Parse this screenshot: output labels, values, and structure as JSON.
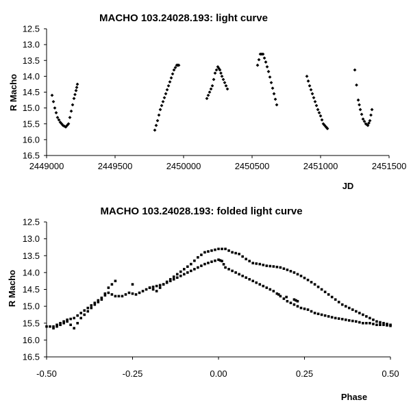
{
  "chart_data": [
    {
      "type": "scatter",
      "title": "MACHO 103.24028.193: light curve",
      "xlabel": "JD",
      "ylabel": "R Macho",
      "xlim": [
        2449000,
        2451500
      ],
      "ylim": [
        12.5,
        16.5
      ],
      "y_inverted": true,
      "grid": false,
      "x_ticks": [
        "2449000",
        "2449500",
        "2450000",
        "2450500",
        "2451000",
        "2451500"
      ],
      "y_ticks": [
        "12.5",
        "13.0",
        "13.5",
        "14.0",
        "14.5",
        "15.0",
        "15.5",
        "16.0",
        "16.5"
      ],
      "marker_color": "#000000",
      "series": [
        {
          "segments": [
            {
              "x": [
                2449040,
                2449060,
                2449080,
                2449100,
                2449120,
                2449140,
                2449160,
                2449180,
                2449200,
                2449215,
                2449225
              ],
              "y": [
                14.6,
                15.0,
                15.3,
                15.45,
                15.55,
                15.6,
                15.5,
                15.1,
                14.7,
                14.45,
                14.25
              ]
            },
            {
              "x": [
                2449790,
                2449810,
                2449830,
                2449850,
                2449870,
                2449890,
                2449910,
                2449930,
                2449950,
                2449965
              ],
              "y": [
                15.7,
                15.4,
                15.05,
                14.8,
                14.55,
                14.3,
                14.05,
                13.8,
                13.65,
                13.65
              ]
            },
            {
              "x": [
                2450170,
                2450190,
                2450210,
                2450230,
                2450250,
                2450265,
                2450280,
                2450300,
                2450320
              ],
              "y": [
                14.7,
                14.5,
                14.3,
                13.9,
                13.7,
                13.8,
                14.0,
                14.2,
                14.4
              ]
            },
            {
              "x": [
                2450540,
                2450560,
                2450580,
                2450600,
                2450620,
                2450640,
                2450660,
                2450680
              ],
              "y": [
                13.65,
                13.3,
                13.3,
                13.55,
                13.85,
                14.2,
                14.55,
                14.9
              ]
            },
            {
              "x": [
                2450900,
                2450920,
                2450940,
                2450960,
                2450980,
                2451000,
                2451020,
                2451040,
                2451050
              ],
              "y": [
                14.0,
                14.3,
                14.55,
                14.8,
                15.05,
                15.25,
                15.5,
                15.6,
                15.65
              ]
            },
            {
              "x": [
                2451250,
                2451275,
                2451290,
                2451310,
                2451330,
                2451345,
                2451360,
                2451375
              ],
              "y": [
                13.8,
                14.75,
                15.05,
                15.35,
                15.5,
                15.55,
                15.4,
                15.05
              ]
            }
          ]
        }
      ]
    },
    {
      "type": "scatter",
      "title": "MACHO 103.24028.193: folded light curve",
      "xlabel": "Phase",
      "ylabel": "R Macho",
      "xlim": [
        -0.5,
        0.5
      ],
      "ylim": [
        12.5,
        16.5
      ],
      "y_inverted": true,
      "grid": false,
      "x_ticks": [
        "-0.50",
        "-0.25",
        "0.00",
        "0.25",
        "0.50"
      ],
      "y_ticks": [
        "12.5",
        "13.0",
        "13.5",
        "14.0",
        "14.5",
        "15.0",
        "15.5",
        "16.0",
        "16.5"
      ],
      "marker_color": "#000000",
      "series": [
        {
          "segments": [
            {
              "x": [
                -0.5,
                -0.48,
                -0.46,
                -0.44,
                -0.42,
                -0.4,
                -0.38,
                -0.36,
                -0.34,
                -0.32,
                -0.3,
                -0.28,
                -0.26,
                -0.24,
                -0.22,
                -0.2,
                -0.18,
                -0.16,
                -0.14,
                -0.12,
                -0.1,
                -0.08,
                -0.06,
                -0.04,
                -0.02,
                0.0,
                0.01,
                0.02,
                0.04,
                0.06,
                0.08,
                0.1,
                0.12,
                0.14,
                0.16,
                0.18,
                0.2,
                0.22,
                0.24,
                0.26,
                0.28,
                0.3,
                0.32,
                0.34,
                0.36,
                0.38,
                0.4,
                0.42,
                0.44,
                0.46,
                0.48,
                0.5
              ],
              "y": [
                15.6,
                15.6,
                15.5,
                15.4,
                15.35,
                15.2,
                15.05,
                14.9,
                14.75,
                14.6,
                14.7,
                14.7,
                14.6,
                14.65,
                14.55,
                14.45,
                14.4,
                14.35,
                14.25,
                14.15,
                14.05,
                13.95,
                13.85,
                13.75,
                13.68,
                13.62,
                13.66,
                13.85,
                13.95,
                14.05,
                14.15,
                14.25,
                14.35,
                14.45,
                14.55,
                14.7,
                14.85,
                14.95,
                15.05,
                15.1,
                15.2,
                15.25,
                15.3,
                15.35,
                15.38,
                15.42,
                15.45,
                15.5,
                15.5,
                15.55,
                15.55,
                15.58
              ]
            },
            {
              "x": [
                -0.48,
                -0.46,
                -0.44,
                -0.42,
                -0.4,
                -0.38,
                -0.36,
                -0.34,
                -0.32,
                -0.3,
                -0.2,
                -0.18,
                -0.16,
                -0.14,
                -0.12,
                -0.1,
                -0.08,
                -0.06,
                -0.04,
                -0.02,
                0.0,
                0.02,
                0.04,
                0.06,
                0.08,
                0.1,
                0.12,
                0.14,
                0.16,
                0.18,
                0.2,
                0.22,
                0.24,
                0.26,
                0.28,
                0.3,
                0.32,
                0.34,
                0.36,
                0.38,
                0.4,
                0.42,
                0.44,
                0.46,
                0.48,
                0.5
              ],
              "y": [
                15.65,
                15.55,
                15.45,
                15.65,
                15.35,
                15.15,
                14.95,
                14.8,
                14.45,
                14.25,
                14.45,
                14.55,
                14.35,
                14.2,
                14.05,
                13.9,
                13.75,
                13.55,
                13.4,
                13.35,
                13.3,
                13.3,
                13.4,
                13.45,
                13.6,
                13.72,
                13.75,
                13.8,
                13.82,
                13.85,
                13.92,
                14.0,
                14.1,
                14.22,
                14.35,
                14.5,
                14.65,
                14.8,
                14.95,
                15.05,
                15.15,
                15.25,
                15.35,
                15.45,
                15.5,
                15.55
              ]
            },
            {
              "x": [
                0.175,
                0.22,
                0.23
              ],
              "y": [
                14.65,
                14.8,
                14.85
              ]
            }
          ]
        }
      ]
    }
  ]
}
